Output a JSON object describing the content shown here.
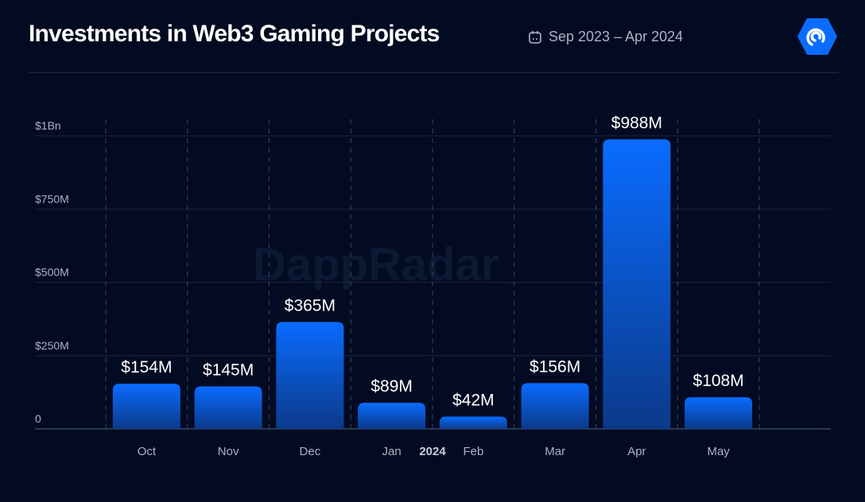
{
  "header": {
    "title": "Investments in Web3 Gaming Projects",
    "date_range": "Sep 2023 – Apr 2024",
    "calendar_icon": "calendar-icon",
    "logo_icon": "dappradar-logo-icon"
  },
  "watermark": "DappRadar",
  "colors": {
    "background": "#030b22",
    "bar_top": "#0a6cff",
    "bar_bottom": "#0b3a8a",
    "text": "#ffffff",
    "muted": "#aab3c5"
  },
  "chart_data": {
    "type": "bar",
    "categories": [
      "Oct",
      "Nov",
      "Dec",
      "Jan",
      "Feb",
      "Mar",
      "Apr",
      "May"
    ],
    "values": [
      154,
      145,
      365,
      89,
      42,
      156,
      988,
      108
    ],
    "data_labels": [
      "$154M",
      "$145M",
      "$365M",
      "$89M",
      "$42M",
      "$156M",
      "$988M",
      "$108M"
    ],
    "units": "USD millions",
    "ylim": [
      0,
      1000
    ],
    "yticks": [
      0,
      250,
      500,
      750,
      1000
    ],
    "ytick_labels": [
      "0",
      "$250M",
      "$500M",
      "$750M",
      "$1Bn"
    ],
    "year_marker": "2024",
    "grid": true,
    "title": "Investments in Web3 Gaming Projects"
  }
}
